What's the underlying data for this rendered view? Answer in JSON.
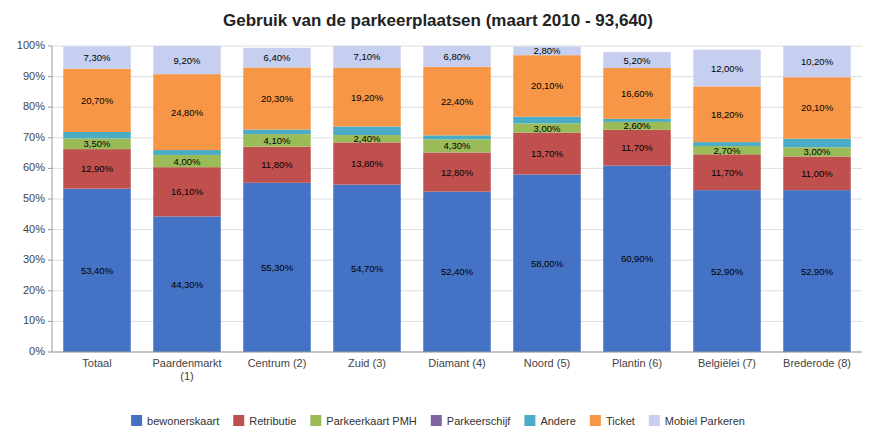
{
  "chart_data": {
    "type": "bar",
    "stacked": true,
    "title": "Gebruik van de parkeerplaatsen (maart 2010 - 93,640)",
    "categories": [
      "Totaal",
      "Paardenmarkt\n(1)",
      "Centrum (2)",
      "Zuid (3)",
      "Diamant (4)",
      "Noord (5)",
      "Plantin (6)",
      "Belgiëlei (7)",
      "Brederode (8)"
    ],
    "series": [
      {
        "name": "bewonerskaart",
        "color": "#4472C4",
        "values": [
          53.4,
          44.3,
          55.3,
          54.7,
          52.4,
          58.0,
          60.9,
          52.9,
          52.9
        ],
        "value_labels": [
          "53,40%",
          "44,30%",
          "55,30%",
          "54,70%",
          "52,40%",
          "58,00%",
          "60,90%",
          "52,90%",
          "52,90%"
        ]
      },
      {
        "name": "Retributie",
        "color": "#C0504D",
        "values": [
          12.9,
          16.1,
          11.8,
          13.8,
          12.8,
          13.7,
          11.7,
          11.7,
          11.0
        ],
        "value_labels": [
          "12,90%",
          "16,10%",
          "11,80%",
          "13,80%",
          "12,80%",
          "13,70%",
          "11,70%",
          "11,70%",
          "11,00%"
        ]
      },
      {
        "name": "Parkeerkaart PMH",
        "color": "#9BBB59",
        "values": [
          3.5,
          4.0,
          4.1,
          2.4,
          4.3,
          3.0,
          2.6,
          2.7,
          3.0
        ],
        "value_labels": [
          "3,50%",
          "4,00%",
          "4,10%",
          "2,40%",
          "4,30%",
          "3,00%",
          "2,60%",
          "2,70%",
          "3,00%"
        ]
      },
      {
        "name": "Parkeerschijf",
        "color": "#8064A2",
        "values": [
          0.0,
          0.0,
          0.0,
          0.0,
          0.0,
          0.0,
          0.0,
          0.0,
          0.0
        ]
      },
      {
        "name": "Andere",
        "color": "#4BACC6",
        "values": [
          2.1,
          1.6,
          1.5,
          2.8,
          1.3,
          2.2,
          1.0,
          1.3,
          2.8
        ]
      },
      {
        "name": "Ticket",
        "color": "#F79646",
        "values": [
          20.7,
          24.8,
          20.3,
          19.2,
          22.4,
          20.1,
          16.6,
          18.2,
          20.1
        ],
        "value_labels": [
          "20,70%",
          "24,80%",
          "20,30%",
          "19,20%",
          "22,40%",
          "20,10%",
          "16,60%",
          "18,20%",
          "20,10%"
        ]
      },
      {
        "name": "Mobiel Parkeren",
        "color": "#C6CFEF",
        "values": [
          7.3,
          9.2,
          6.4,
          7.1,
          6.8,
          2.8,
          5.2,
          12.0,
          10.2
        ],
        "value_labels": [
          "7,30%",
          "9,20%",
          "6,40%",
          "7,10%",
          "6,80%",
          "2,80%",
          "5,20%",
          "12,00%",
          "10,20%"
        ]
      }
    ],
    "data_labels": true,
    "ylim": [
      0,
      100
    ],
    "yticks": [
      {
        "value": 0,
        "label": "0%"
      },
      {
        "value": 10,
        "label": "10%"
      },
      {
        "value": 20,
        "label": "20%"
      },
      {
        "value": 30,
        "label": "30%"
      },
      {
        "value": 40,
        "label": "40%"
      },
      {
        "value": 50,
        "label": "50%"
      },
      {
        "value": 60,
        "label": "60%"
      },
      {
        "value": 70,
        "label": "70%"
      },
      {
        "value": 80,
        "label": "80%"
      },
      {
        "value": 90,
        "label": "90%"
      },
      {
        "value": 100,
        "label": "100%"
      }
    ],
    "grid": true,
    "legend": "bottom"
  }
}
